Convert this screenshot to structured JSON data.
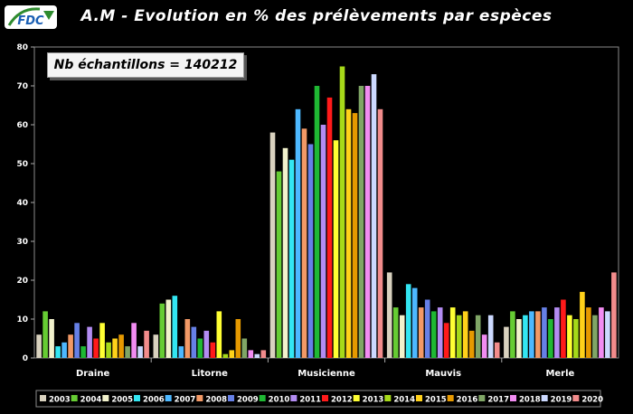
{
  "title": "A.M - Evolution en % des prélèvements par espèces",
  "logo_text": "FDC",
  "sample_label": "Nb échantillons = 140212",
  "chart_data": {
    "type": "bar",
    "categories": [
      "Draine",
      "Litorne",
      "Musicienne",
      "Mauvis",
      "Merle"
    ],
    "ylim": [
      0,
      80
    ],
    "yticks": [
      0,
      10,
      20,
      30,
      40,
      50,
      60,
      70,
      80
    ],
    "grid": false,
    "legend_position": "bottom",
    "series": [
      {
        "name": "2003",
        "color": "#d9d2bf",
        "values": [
          6,
          6,
          58,
          22,
          8
        ]
      },
      {
        "name": "2004",
        "color": "#66cc33",
        "values": [
          12,
          14,
          48,
          13,
          12
        ]
      },
      {
        "name": "2005",
        "color": "#f2f2cc",
        "values": [
          10,
          15,
          54,
          11,
          10
        ]
      },
      {
        "name": "2006",
        "color": "#33e6f2",
        "values": [
          3,
          16,
          51,
          19,
          11
        ]
      },
      {
        "name": "2007",
        "color": "#4db8ff",
        "values": [
          4,
          3,
          64,
          18,
          12
        ]
      },
      {
        "name": "2008",
        "color": "#f29966",
        "values": [
          6,
          10,
          59,
          13,
          12
        ]
      },
      {
        "name": "2009",
        "color": "#6680e6",
        "values": [
          9,
          8,
          55,
          15,
          13
        ]
      },
      {
        "name": "2010",
        "color": "#1fb833",
        "values": [
          3,
          5,
          70,
          12,
          10
        ]
      },
      {
        "name": "2011",
        "color": "#b38cf2",
        "values": [
          8,
          7,
          60,
          13,
          13
        ]
      },
      {
        "name": "2012",
        "color": "#ff1a1a",
        "values": [
          5,
          4,
          67,
          9,
          15
        ]
      },
      {
        "name": "2013",
        "color": "#ffff33",
        "values": [
          9,
          12,
          56,
          13,
          11
        ]
      },
      {
        "name": "2014",
        "color": "#a6d919",
        "values": [
          4,
          1,
          75,
          11,
          10
        ]
      },
      {
        "name": "2015",
        "color": "#ffd11a",
        "values": [
          5,
          2,
          64,
          12,
          17
        ]
      },
      {
        "name": "2016",
        "color": "#e69900",
        "values": [
          6,
          10,
          63,
          7,
          13
        ]
      },
      {
        "name": "2017",
        "color": "#80a666",
        "values": [
          3,
          5,
          70,
          11,
          11
        ]
      },
      {
        "name": "2018",
        "color": "#f28cf2",
        "values": [
          9,
          2,
          70,
          6,
          13
        ]
      },
      {
        "name": "2019",
        "color": "#ccd9ff",
        "values": [
          3,
          1,
          73,
          11,
          12
        ]
      },
      {
        "name": "2020",
        "color": "#f28c8c",
        "values": [
          7,
          2,
          64,
          4,
          22
        ]
      }
    ]
  }
}
